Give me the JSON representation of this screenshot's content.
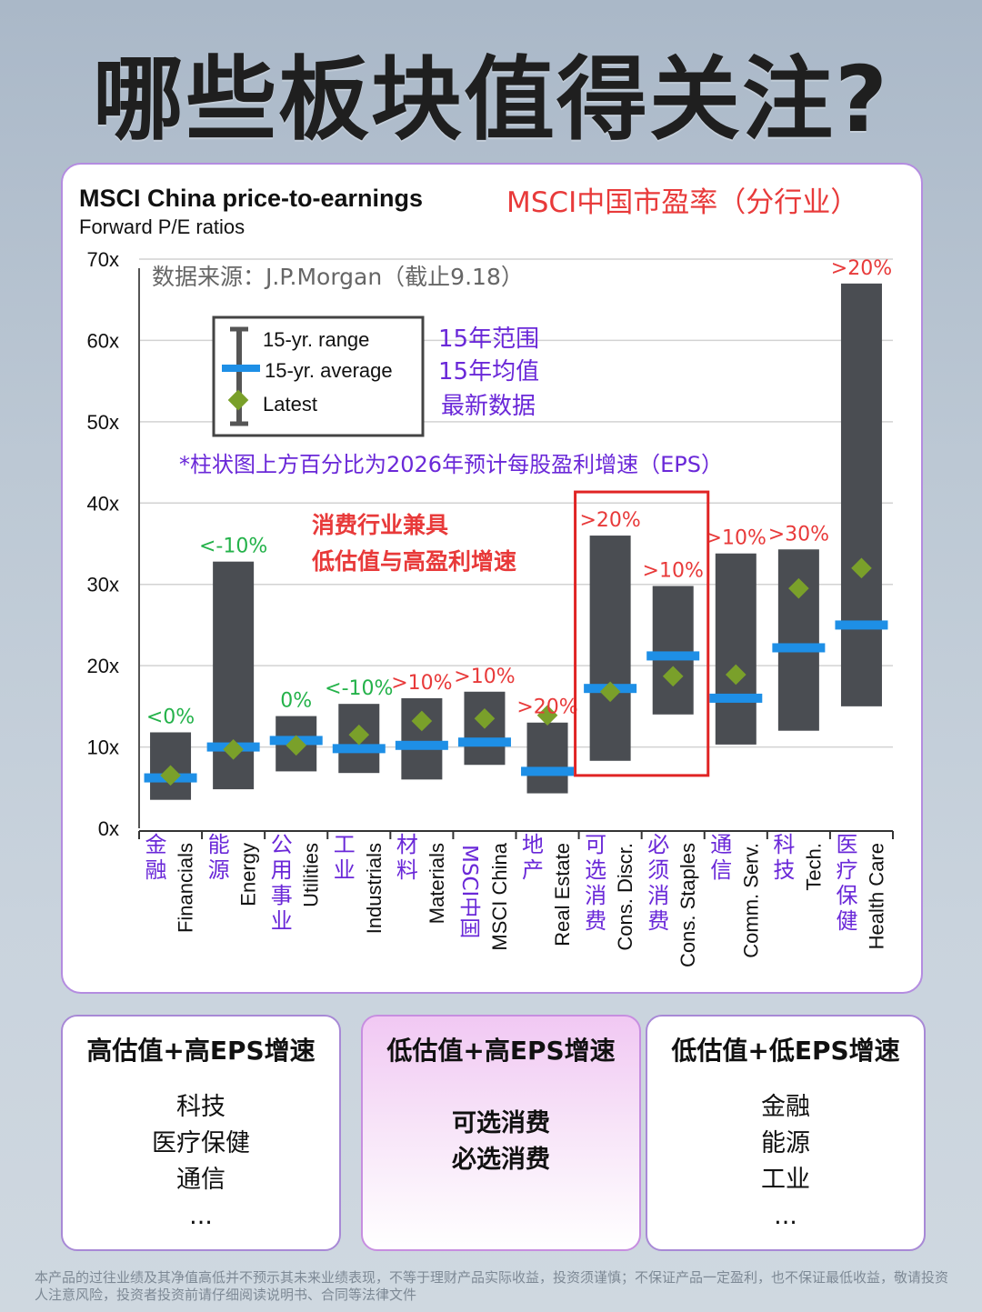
{
  "page_title": "哪些板块值得关注?",
  "chart_title": "MSCI China price-to-earnings",
  "chart_subtitle": "Forward P/E ratios",
  "chart_title_cn": "MSCI中国市盈率（分行业）",
  "source_note": "数据来源：J.P.Morgan（截止9.18）",
  "legend": {
    "range": "15-yr. range",
    "average": "15-yr. average",
    "latest": "Latest",
    "range_cn": "15年范围",
    "average_cn": "15年均值",
    "latest_cn": "最新数据"
  },
  "eps_note": "*柱状图上方百分比为2026年预计每股盈利增速（EPS）",
  "highlight_note": [
    "消费行业兼具",
    "低估值与高盈利增速"
  ],
  "colors": {
    "bar": "#4a4d52",
    "average": "#1e8fe6",
    "latest": "#7aa02a",
    "green_label": "#24b24a",
    "red_label": "#e83a3a",
    "purple": "#6a28d8",
    "highlight_box": "#e02424"
  },
  "chart_data": {
    "type": "range-bar",
    "y_ticks": [
      "0x",
      "10x",
      "20x",
      "30x",
      "40x",
      "50x",
      "60x",
      "70x"
    ],
    "ylim": [
      0,
      70
    ],
    "grid": true,
    "categories": [
      {
        "en": "Financials",
        "cn": "金融",
        "min": 3.5,
        "max": 11.8,
        "avg": 6.2,
        "latest": 6.5,
        "eps": "<0%",
        "eps_color": "green"
      },
      {
        "en": "Energy",
        "cn": "能源",
        "min": 4.8,
        "max": 32.8,
        "avg": 10.0,
        "latest": 9.7,
        "eps": "<-10%",
        "eps_color": "green"
      },
      {
        "en": "Utilities",
        "cn": "公用事业",
        "min": 7.0,
        "max": 13.8,
        "avg": 10.8,
        "latest": 10.2,
        "eps": "0%",
        "eps_color": "green"
      },
      {
        "en": "Industrials",
        "cn": "工业",
        "min": 6.8,
        "max": 15.3,
        "avg": 9.8,
        "latest": 11.5,
        "eps": "<-10%",
        "eps_color": "green"
      },
      {
        "en": "Materials",
        "cn": "材料",
        "min": 6.0,
        "max": 16.0,
        "avg": 10.2,
        "latest": 13.2,
        "eps": ">10%",
        "eps_color": "red"
      },
      {
        "en": "MSCI China",
        "cn": "MSCI中国",
        "min": 7.8,
        "max": 16.8,
        "avg": 10.6,
        "latest": 13.5,
        "eps": ">10%",
        "eps_color": "red"
      },
      {
        "en": "Real Estate",
        "cn": "地产",
        "min": 4.3,
        "max": 13.0,
        "avg": 7.0,
        "latest": 13.9,
        "eps": ">20%",
        "eps_color": "red"
      },
      {
        "en": "Cons. Discr.",
        "cn": "可选消费",
        "min": 8.3,
        "max": 36.0,
        "avg": 17.2,
        "latest": 16.8,
        "eps": ">20%",
        "eps_color": "red"
      },
      {
        "en": "Cons. Staples",
        "cn": "必须消费",
        "min": 14.0,
        "max": 29.8,
        "avg": 21.2,
        "latest": 18.7,
        "eps": ">10%",
        "eps_color": "red"
      },
      {
        "en": "Comm. Serv.",
        "cn": "通信",
        "min": 10.3,
        "max": 33.8,
        "avg": 16.0,
        "latest": 18.9,
        "eps": ">10%",
        "eps_color": "red"
      },
      {
        "en": "Tech.",
        "cn": "科技",
        "min": 12.0,
        "max": 34.3,
        "avg": 22.2,
        "latest": 29.5,
        "eps": ">30%",
        "eps_color": "red"
      },
      {
        "en": "Health Care",
        "cn": "医疗保健",
        "min": 15.0,
        "max": 67.0,
        "avg": 25.0,
        "latest": 32.0,
        "eps": ">20%",
        "eps_color": "red"
      }
    ],
    "highlight_categories": [
      "Cons. Discr.",
      "Cons. Staples"
    ]
  },
  "summary_boxes": [
    {
      "title": "高估值+高EPS增速",
      "items": [
        "科技",
        "医疗保健",
        "通信",
        "..."
      ]
    },
    {
      "title": "低估值+高EPS增速",
      "items": [
        "可选消费",
        "必选消费"
      ]
    },
    {
      "title": "低估值+低EPS增速",
      "items": [
        "金融",
        "能源",
        "工业",
        "..."
      ]
    }
  ],
  "disclaimer": "本产品的过往业绩及其净值高低并不预示其未来业绩表现，不等于理财产品实际收益，投资须谨慎；不保证产品一定盈利，也不保证最低收益，敬请投资人注意风险，投资者投资前请仔细阅读说明书、合同等法律文件"
}
